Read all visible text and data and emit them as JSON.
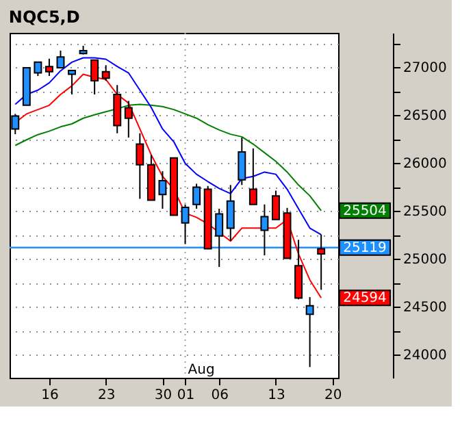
{
  "chart_data": {
    "type": "candlestick",
    "title": "NQC5,D",
    "categories": [
      null,
      null,
      null,
      "16",
      null,
      null,
      null,
      null,
      "23",
      null,
      null,
      null,
      null,
      "30",
      null,
      "01",
      null,
      null,
      "06",
      null,
      null,
      null,
      null,
      "13",
      null,
      null,
      null,
      null,
      "20"
    ],
    "ohlc": [
      [
        26356,
        26514,
        26302,
        26492
      ],
      [
        26605,
        26995,
        26605,
        26995
      ],
      [
        26942,
        27054,
        26910,
        27054
      ],
      [
        27009,
        27090,
        26910,
        26955
      ],
      [
        26995,
        27175,
        26995,
        27108
      ],
      [
        26928,
        26968,
        26717,
        26968
      ],
      [
        27144,
        27225,
        27135,
        27175
      ],
      [
        27076,
        27076,
        26717,
        26860
      ],
      [
        26955,
        27022,
        26860,
        26887
      ],
      [
        26717,
        26815,
        26312,
        26392
      ],
      [
        26577,
        26649,
        26267,
        26469
      ],
      [
        26199,
        26312,
        25628,
        25983
      ],
      [
        25983,
        26087,
        25614,
        25614
      ],
      [
        25673,
        25916,
        25524,
        25817
      ],
      [
        26055,
        26055,
        25456,
        25456
      ],
      [
        25376,
        25569,
        25155,
        25538
      ],
      [
        25569,
        25785,
        25524,
        25749
      ],
      [
        25727,
        25762,
        25106,
        25106
      ],
      [
        25240,
        25524,
        24917,
        25470
      ],
      [
        25321,
        25772,
        25187,
        25605
      ],
      [
        25826,
        26267,
        25772,
        26118
      ],
      [
        25727,
        26154,
        25569,
        25569
      ],
      [
        25299,
        25569,
        25038,
        25443
      ],
      [
        25659,
        25713,
        25412,
        25412
      ],
      [
        25479,
        25533,
        25007,
        25007
      ],
      [
        24930,
        25200,
        24579,
        24592
      ],
      [
        24422,
        24602,
        23872,
        24512
      ],
      [
        25106,
        25254,
        24678,
        25052
      ],
      null
    ],
    "colors": [
      "#1e90ff",
      "#1e90ff",
      "#1e90ff",
      "#ff0000",
      "#1e90ff",
      "#1e90ff",
      "#1e90ff",
      "#ff0000",
      "#ff0000",
      "#ff0000",
      "#ff0000",
      "#ff0000",
      "#ff0000",
      "#1e90ff",
      "#ff0000",
      "#1e90ff",
      "#1e90ff",
      "#ff0000",
      "#1e90ff",
      "#1e90ff",
      "#1e90ff",
      "#ff0000",
      "#1e90ff",
      "#ff0000",
      "#ff0000",
      "#ff0000",
      "#1e90ff",
      "#ff0000",
      null
    ],
    "series": [
      {
        "type": "line",
        "color": "#008000",
        "values": [
          26185,
          26244,
          26298,
          26334,
          26379,
          26410,
          26469,
          26505,
          26537,
          26568,
          26604,
          26613,
          26604,
          26590,
          26559,
          26514,
          26469,
          26402,
          26347,
          26302,
          26275,
          26199,
          26109,
          26019,
          25907,
          25772,
          25659,
          25504,
          null
        ],
        "value_labels": [
          null,
          null,
          null,
          null,
          null,
          null,
          null,
          null,
          null,
          null,
          null,
          null,
          null,
          null,
          null,
          null,
          null,
          null,
          null,
          null,
          null,
          null,
          null,
          null,
          null,
          null,
          null,
          "25504",
          null
        ]
      },
      {
        "type": "line",
        "color": "#0000ff",
        "values": [
          26613,
          26717,
          26762,
          26838,
          26964,
          27054,
          27099,
          27099,
          27085,
          27009,
          26942,
          26762,
          26582,
          26357,
          26222,
          25997,
          25884,
          25808,
          25736,
          25682,
          25839,
          25862,
          25907,
          25884,
          25727,
          25524,
          25322,
          25254,
          null
        ]
      },
      {
        "type": "line",
        "color": "#ff0000",
        "values": [
          26424,
          26514,
          26559,
          26604,
          26717,
          26807,
          26928,
          26896,
          26874,
          26717,
          26627,
          26357,
          26087,
          25862,
          25727,
          25479,
          25434,
          25367,
          25276,
          25187,
          25322,
          25322,
          25322,
          25322,
          25412,
          25052,
          24782,
          24594,
          null
        ],
        "value_labels": [
          null,
          null,
          null,
          null,
          null,
          null,
          null,
          null,
          null,
          null,
          null,
          null,
          null,
          null,
          null,
          null,
          null,
          null,
          null,
          null,
          null,
          null,
          null,
          null,
          null,
          null,
          null,
          "24594",
          null
        ]
      }
    ],
    "ylim": [
      23760,
      27360
    ],
    "yticks": [
      {
        "value": 24000,
        "label": "24000"
      },
      {
        "value": 24250,
        "label": null
      },
      {
        "value": 24500,
        "label": "24500"
      },
      {
        "value": 24750,
        "label": null
      },
      {
        "value": 25000,
        "label": "25000"
      },
      {
        "value": 25250,
        "label": null
      },
      {
        "value": 25500,
        "label": "25500"
      },
      {
        "value": 25750,
        "label": null
      },
      {
        "value": 26000,
        "label": "26000"
      },
      {
        "value": 26250,
        "label": null
      },
      {
        "value": 26500,
        "label": "26500"
      },
      {
        "value": 26750,
        "label": null
      },
      {
        "value": 27000,
        "label": "27000"
      },
      {
        "value": 27250,
        "label": null
      }
    ],
    "grid": "y",
    "ref_lines": [
      {
        "axis": "y",
        "value": 25119,
        "label": "25119",
        "color": "#1e90ff"
      },
      {
        "axis": "x",
        "value": "01",
        "color": "#a0a0a0",
        "line_style": "dotted"
      }
    ],
    "annotations": [
      {
        "text": "Aug",
        "x": "01"
      }
    ]
  }
}
